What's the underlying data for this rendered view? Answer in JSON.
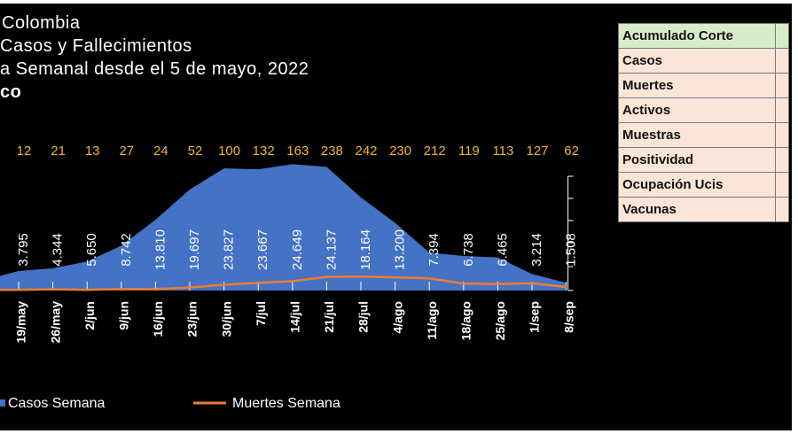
{
  "title_lines": [
    "Colombia",
    "Casos y Fallecimientos",
    "a Semanal desde el 5 de mayo, 2022",
    "co"
  ],
  "summary_table": {
    "header": "Acumulado Corte",
    "rows": [
      "Casos",
      "Muertes",
      "Activos",
      "Muestras",
      "Positividad",
      "Ocupación Ucis",
      "Vacunas"
    ]
  },
  "colors": {
    "background": "#000000",
    "cases_fill": "#4472c4",
    "deaths_line": "#ed7d31",
    "death_labels": "#f0b433",
    "table_header_bg": "#d7ecc8",
    "table_row_bg": "#fbe5d8"
  },
  "chart_data": {
    "type": "area",
    "categories": [
      "19/may",
      "26/may",
      "2/jun",
      "9/jun",
      "16/jun",
      "23/jun",
      "30/jun",
      "7/jul",
      "14/jul",
      "21/jul",
      "28/jul",
      "4/ago",
      "11/ago",
      "18/ago",
      "25/ago",
      "1/sep",
      "8/sep"
    ],
    "series": [
      {
        "name": "Casos Semana",
        "kind": "area",
        "values": [
          3795,
          4344,
          5650,
          8742,
          13810,
          19697,
          23827,
          23667,
          24649,
          24137,
          18164,
          13200,
          7394,
          6738,
          6465,
          3214,
          1508
        ],
        "labels": [
          "3.795",
          "4.344",
          "5.650",
          "8.742",
          "13.810",
          "19.697",
          "23.827",
          "23.667",
          "24.649",
          "24.137",
          "18.164",
          "13.200",
          "7.394",
          "6.738",
          "6.465",
          "3.214",
          "1.508"
        ]
      },
      {
        "name": "Muertes Semana",
        "kind": "line",
        "values": [
          12,
          21,
          13,
          27,
          24,
          52,
          100,
          132,
          163,
          238,
          242,
          230,
          212,
          119,
          113,
          127,
          62
        ],
        "labels": [
          "12",
          "21",
          "13",
          "27",
          "24",
          "52",
          "100",
          "132",
          "163",
          "238",
          "242",
          "230",
          "212",
          "119",
          "113",
          "127",
          "62"
        ]
      }
    ],
    "cases_axis_range": [
      0,
      28000
    ],
    "deaths_axis_range": [
      0,
      2500
    ],
    "legend_position": "bottom-left",
    "grid": false
  }
}
